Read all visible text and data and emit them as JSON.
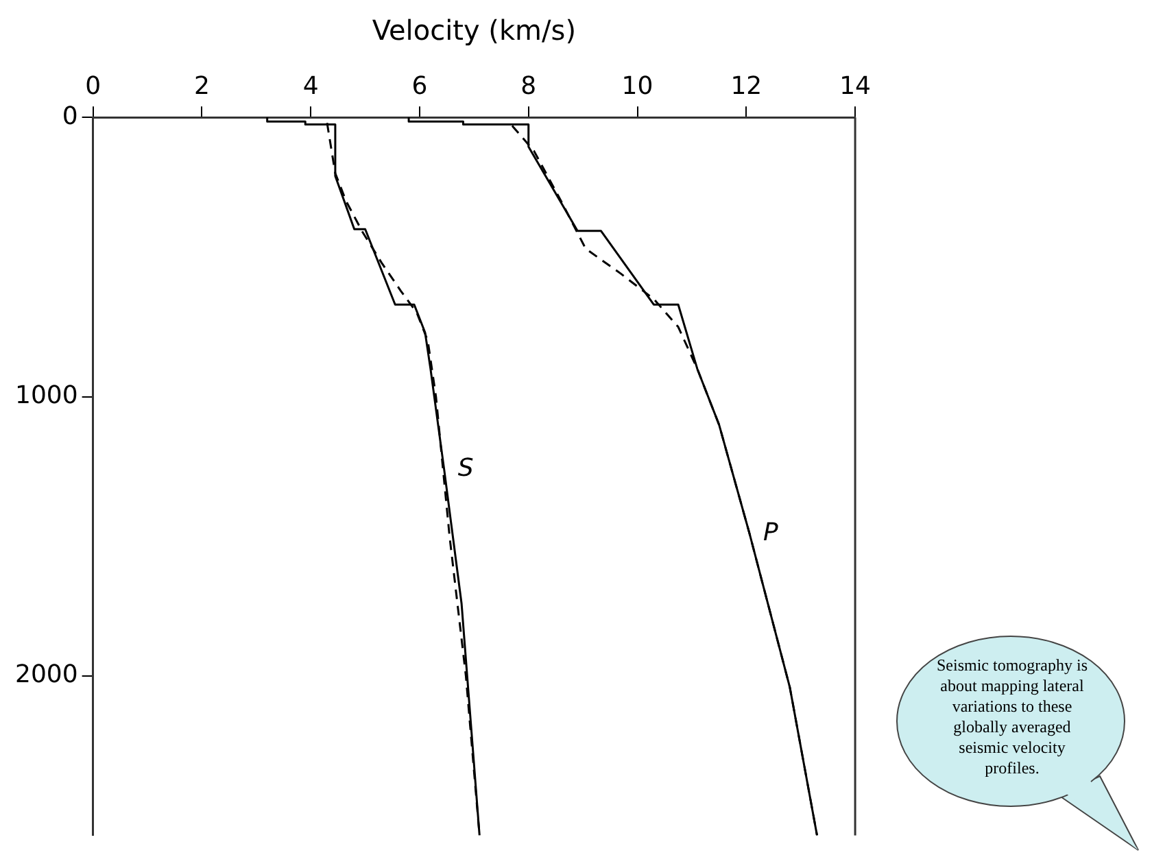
{
  "chart_data": {
    "type": "line",
    "xlabel": "Velocity (km/s)",
    "xlim": [
      0,
      14
    ],
    "xticks": [
      0,
      2,
      4,
      6,
      8,
      10,
      12,
      14
    ],
    "ylim": [
      2570,
      0
    ],
    "yticks": [
      0,
      1000,
      2000
    ],
    "grid": false,
    "legend": false,
    "marker": "none",
    "series": [
      {
        "name": "P",
        "color": "#000000",
        "line_style": "solid",
        "x": [
          5.8,
          5.8,
          6.8,
          6.8,
          8.0,
          8.0,
          8.9,
          9.33,
          10.3,
          10.75,
          11.1,
          11.5,
          12.06,
          12.8,
          13.3
        ],
        "values": [
          0,
          15,
          15,
          25,
          25,
          105,
          406,
          406,
          670,
          670,
          900,
          1100,
          1490,
          2040,
          2570
        ]
      },
      {
        "color": "#000000",
        "line_style": "dashed",
        "x": [
          7.7,
          8.1,
          8.6,
          9.05,
          9.7,
          10.3,
          10.75,
          11.1,
          11.5,
          12.06,
          12.8,
          13.3
        ],
        "values": [
          30,
          120,
          300,
          470,
          560,
          650,
          750,
          900,
          1100,
          1490,
          2040,
          2570
        ]
      },
      {
        "name": "S",
        "color": "#000000",
        "line_style": "solid",
        "x": [
          3.2,
          3.2,
          3.9,
          3.9,
          4.45,
          4.45,
          4.8,
          5.0,
          5.55,
          5.9,
          6.1,
          6.2,
          6.45,
          6.77,
          7.1
        ],
        "values": [
          0,
          15,
          15,
          25,
          25,
          210,
          400,
          400,
          670,
          670,
          770,
          900,
          1260,
          1740,
          2570
        ]
      },
      {
        "color": "#000000",
        "line_style": "dashed",
        "x": [
          4.3,
          4.45,
          4.65,
          4.95,
          5.3,
          5.65,
          5.95,
          6.15,
          6.3,
          6.55,
          6.85,
          7.1
        ],
        "values": [
          20,
          200,
          300,
          410,
          520,
          620,
          700,
          800,
          1000,
          1500,
          2000,
          2570
        ]
      }
    ],
    "annotations": [
      "Seismic tomography is about mapping lateral variations to these globally averaged seismic velocity profiles."
    ]
  }
}
